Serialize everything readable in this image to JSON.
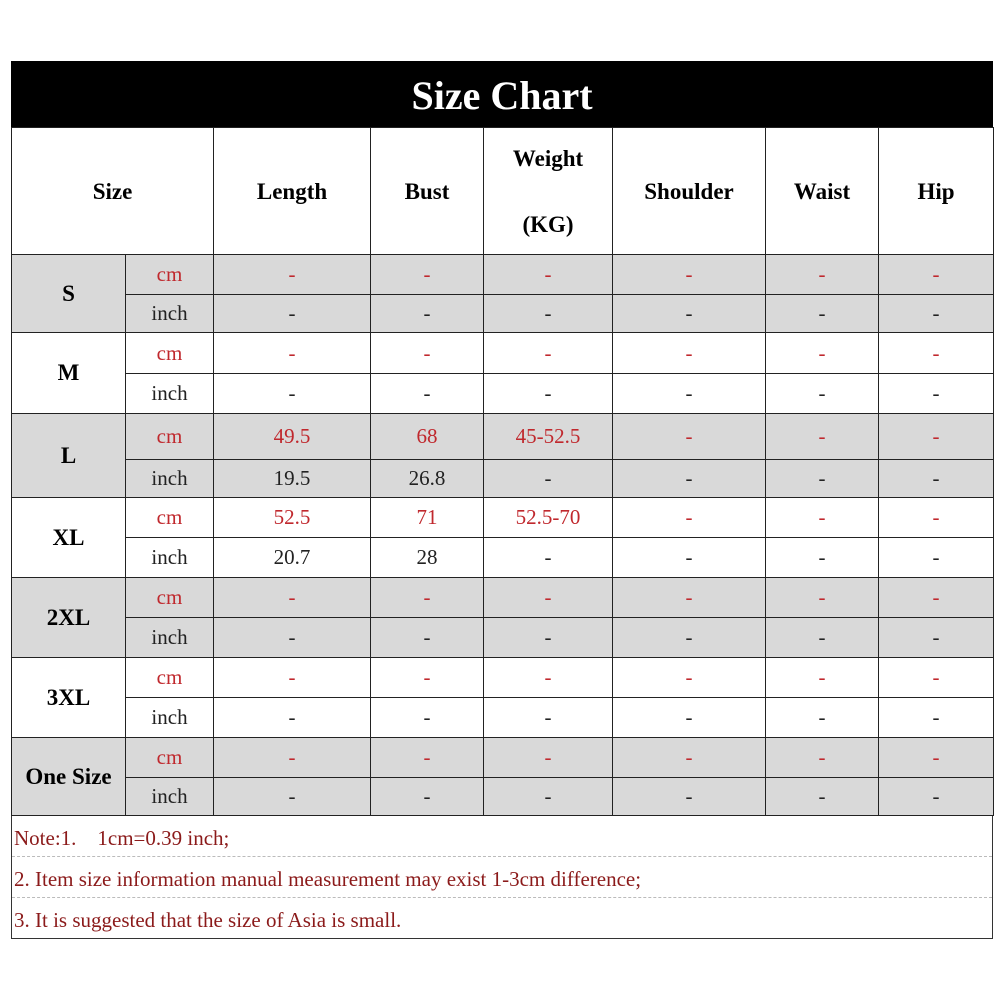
{
  "title": "Size Chart",
  "headers": {
    "size": "Size",
    "length": "Length",
    "bust": "Bust",
    "weight_line1": "Weight",
    "weight_line2": "(KG)",
    "shoulder": "Shoulder",
    "waist": "Waist",
    "hip": "Hip"
  },
  "colors": {
    "unit_cm": "#c0282d",
    "notes": "#8b1a1a",
    "shaded_row": "#d9d9d9",
    "title_bg": "#000000"
  },
  "rows": [
    {
      "size": "S",
      "shaded": true,
      "cm": {
        "unit": "cm",
        "values": [
          "-",
          "-",
          "-",
          "-",
          "-",
          "-"
        ]
      },
      "inch": {
        "unit": "inch",
        "values": [
          "-",
          "-",
          "-",
          "-",
          "-",
          "-"
        ]
      }
    },
    {
      "size": "M",
      "shaded": false,
      "cm": {
        "unit": "cm",
        "values": [
          "-",
          "-",
          "-",
          "-",
          "-",
          "-"
        ]
      },
      "inch": {
        "unit": "inch",
        "values": [
          "-",
          "-",
          "-",
          "-",
          "-",
          "-"
        ]
      }
    },
    {
      "size": "L",
      "shaded": true,
      "cm": {
        "unit": "cm",
        "values": [
          "49.5",
          "68",
          "45-52.5",
          "-",
          "-",
          "-"
        ]
      },
      "inch": {
        "unit": "inch",
        "values": [
          "19.5",
          "26.8",
          "-",
          "-",
          "-",
          "-"
        ]
      }
    },
    {
      "size": "XL",
      "shaded": false,
      "cm": {
        "unit": "cm",
        "values": [
          "52.5",
          "71",
          "52.5-70",
          "-",
          "-",
          "-"
        ]
      },
      "inch": {
        "unit": "inch",
        "values": [
          "20.7",
          "28",
          "-",
          "-",
          "-",
          "-"
        ]
      }
    },
    {
      "size": "2XL",
      "shaded": true,
      "cm": {
        "unit": "cm",
        "values": [
          "-",
          "-",
          "-",
          "-",
          "-",
          "-"
        ]
      },
      "inch": {
        "unit": "inch",
        "values": [
          "-",
          "-",
          "-",
          "-",
          "-",
          "-"
        ]
      }
    },
    {
      "size": "3XL",
      "shaded": false,
      "cm": {
        "unit": "cm",
        "values": [
          "-",
          "-",
          "-",
          "-",
          "-",
          "-"
        ]
      },
      "inch": {
        "unit": "inch",
        "values": [
          "-",
          "-",
          "-",
          "-",
          "-",
          "-"
        ]
      }
    },
    {
      "size": "One Size",
      "shaded": true,
      "cm": {
        "unit": "cm",
        "values": [
          "-",
          "-",
          "-",
          "-",
          "-",
          "-"
        ]
      },
      "inch": {
        "unit": "inch",
        "values": [
          "-",
          "-",
          "-",
          "-",
          "-",
          "-"
        ]
      }
    }
  ],
  "notes": [
    "Note:1.    1cm=0.39 inch;",
    "2. Item size information manual measurement may exist 1-3cm difference;",
    "3. It is suggested that the size of Asia is small."
  ]
}
